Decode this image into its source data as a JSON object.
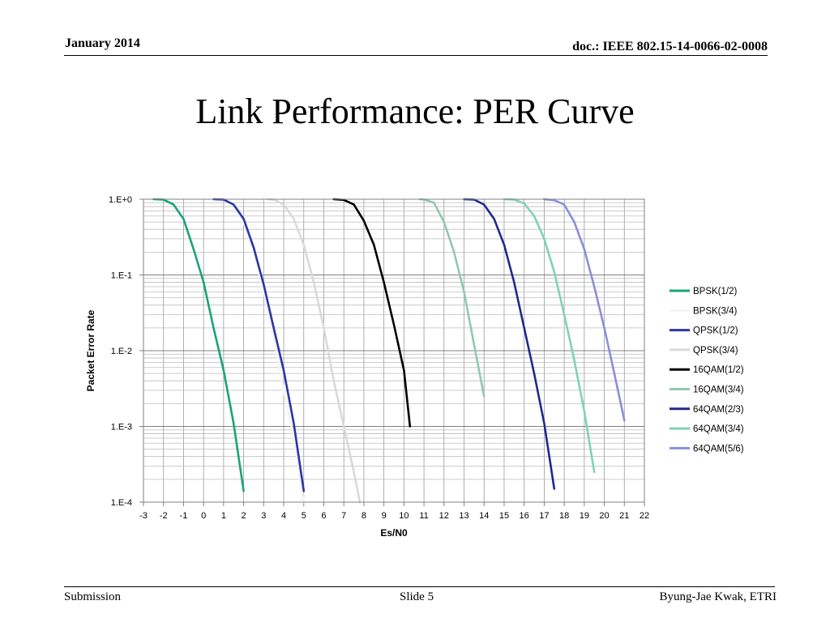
{
  "slide": {
    "date": "January 2014",
    "doc_id": "doc.: IEEE 802.15-14-0066-02-0008",
    "title": "Link Performance: PER Curve",
    "footer_left": "Submission",
    "footer_center": "Slide 5",
    "footer_right": "Byung-Jae Kwak, ETRI"
  },
  "chart_data": {
    "type": "line",
    "title": "",
    "xlabel": "Es/N0",
    "ylabel": "Packet Error Rate",
    "xlim": [
      -3,
      22
    ],
    "xticks": [
      -3,
      -2,
      -1,
      0,
      1,
      2,
      3,
      4,
      5,
      6,
      7,
      8,
      9,
      10,
      11,
      12,
      13,
      14,
      15,
      16,
      17,
      18,
      19,
      20,
      21,
      22
    ],
    "ylim": [
      0.0001,
      1
    ],
    "yscale": "log",
    "yticks": [
      {
        "value": 1,
        "label": "1.E+0"
      },
      {
        "value": 0.1,
        "label": "1.E-1"
      },
      {
        "value": 0.01,
        "label": "1.E-2"
      },
      {
        "value": 0.001,
        "label": "1.E-3"
      },
      {
        "value": 0.0001,
        "label": "1.E-4"
      }
    ],
    "grid": true,
    "legend_position": "right",
    "series": [
      {
        "name": "BPSK(1/2)",
        "color": "#1aa37a",
        "x": [
          -2.5,
          -2,
          -1.5,
          -1,
          -0.5,
          0,
          0.5,
          1,
          1.5,
          2
        ],
        "y": [
          1,
          0.99,
          0.85,
          0.55,
          0.22,
          0.08,
          0.02,
          0.0055,
          0.0011,
          0.00014
        ]
      },
      {
        "name": "BPSK(3/4)",
        "color": "#f4f4f4",
        "x": [
          0.5,
          1,
          1.5,
          2,
          2.5,
          3,
          3.5,
          4,
          4.5,
          5
        ],
        "y": [
          1,
          0.99,
          0.85,
          0.5,
          0.2,
          0.06,
          0.015,
          0.003,
          0.0007,
          0.0001
        ]
      },
      {
        "name": "QPSK(1/2)",
        "color": "#2b35a6",
        "x": [
          0.5,
          1,
          1.5,
          2,
          2.5,
          3,
          3.5,
          4,
          4.5,
          5
        ],
        "y": [
          1,
          0.99,
          0.85,
          0.55,
          0.23,
          0.075,
          0.02,
          0.0055,
          0.0011,
          0.00014
        ]
      },
      {
        "name": "QPSK(3/4)",
        "color": "#d9d9d9",
        "x": [
          3.2,
          3.5,
          4,
          4.5,
          5,
          5.5,
          6,
          6.5,
          7,
          7.5,
          7.8
        ],
        "y": [
          1,
          0.99,
          0.85,
          0.55,
          0.25,
          0.08,
          0.02,
          0.004,
          0.001,
          0.00025,
          0.0001
        ]
      },
      {
        "name": "16QAM(1/2)",
        "color": "#000000",
        "x": [
          6.5,
          7,
          7.5,
          8,
          8.5,
          9,
          9.5,
          10,
          10.3
        ],
        "y": [
          1,
          0.98,
          0.85,
          0.52,
          0.25,
          0.08,
          0.022,
          0.0055,
          0.001
        ]
      },
      {
        "name": "16QAM(3/4)",
        "color": "#8fc9b0",
        "x": [
          10.8,
          11,
          11.5,
          12,
          12.5,
          13,
          13.5,
          14
        ],
        "y": [
          1,
          0.99,
          0.9,
          0.5,
          0.2,
          0.06,
          0.012,
          0.0025
        ]
      },
      {
        "name": "64QAM(2/3)",
        "color": "#1f2a8a",
        "x": [
          13,
          13.5,
          14,
          14.5,
          15,
          15.5,
          16,
          16.5,
          17,
          17.5
        ],
        "y": [
          1,
          0.99,
          0.85,
          0.55,
          0.25,
          0.08,
          0.02,
          0.005,
          0.0011,
          0.00015
        ]
      },
      {
        "name": "64QAM(3/4)",
        "color": "#7fd3b4",
        "x": [
          15,
          15.5,
          16,
          16.5,
          17,
          17.5,
          18,
          18.5,
          19,
          19.5
        ],
        "y": [
          1,
          0.99,
          0.88,
          0.6,
          0.3,
          0.11,
          0.03,
          0.0075,
          0.0016,
          0.00025
        ]
      },
      {
        "name": "64QAM(5/6)",
        "color": "#8a8fd6",
        "x": [
          17,
          17.5,
          18,
          18.5,
          19,
          19.5,
          20,
          20.5,
          21
        ],
        "y": [
          1,
          0.97,
          0.85,
          0.5,
          0.22,
          0.07,
          0.02,
          0.005,
          0.0012
        ]
      }
    ]
  }
}
